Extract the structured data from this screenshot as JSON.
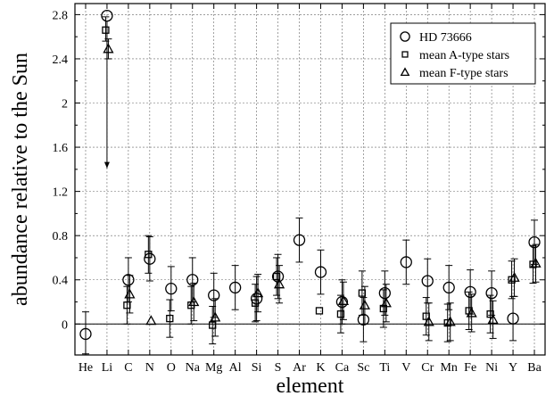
{
  "chart_data": {
    "type": "scatter",
    "xlabel": "element",
    "ylabel": "abundance relative to the Sun",
    "categories": [
      "He",
      "Li",
      "C",
      "N",
      "O",
      "Na",
      "Mg",
      "Al",
      "Si",
      "S",
      "Ar",
      "K",
      "Ca",
      "Sc",
      "Ti",
      "V",
      "Cr",
      "Mn",
      "Fe",
      "Ni",
      "Y",
      "Ba"
    ],
    "ylim": [
      -0.28,
      2.9
    ],
    "yticks": [
      0,
      0.4,
      0.8,
      1.2,
      1.6,
      2,
      2.4,
      2.8
    ],
    "ytick_labels": [
      "0",
      "0.4",
      "0.8",
      "1.2",
      "1.6",
      "2",
      "2.4",
      "2.8"
    ],
    "grid": true,
    "legend_position": "top-right",
    "reference_line": 0,
    "series": [
      {
        "name": "HD 73666",
        "marker": "circle",
        "points": [
          {
            "cat": "He",
            "y": -0.09,
            "lo": -0.27,
            "hi": 0.11
          },
          {
            "cat": "Li",
            "y": 2.79,
            "upper_limit": true,
            "arrow_to": 1.41
          },
          {
            "cat": "C",
            "y": 0.4,
            "lo": 0.2,
            "hi": 0.6
          },
          {
            "cat": "N",
            "y": 0.59,
            "lo": 0.39,
            "hi": 0.79
          },
          {
            "cat": "O",
            "y": 0.32,
            "lo": 0.12,
            "hi": 0.52
          },
          {
            "cat": "Na",
            "y": 0.4,
            "lo": 0.2,
            "hi": 0.6
          },
          {
            "cat": "Mg",
            "y": 0.26,
            "lo": 0.06,
            "hi": 0.46
          },
          {
            "cat": "Al",
            "y": 0.33,
            "lo": 0.13,
            "hi": 0.53
          },
          {
            "cat": "Si",
            "y": 0.23,
            "lo": 0.03,
            "hi": 0.43
          },
          {
            "cat": "S",
            "y": 0.43,
            "lo": 0.23,
            "hi": 0.63
          },
          {
            "cat": "Ar",
            "y": 0.76,
            "lo": 0.56,
            "hi": 0.96
          },
          {
            "cat": "K",
            "y": 0.47,
            "lo": 0.27,
            "hi": 0.67
          },
          {
            "cat": "Ca",
            "y": 0.2,
            "lo": 0.0,
            "hi": 0.4
          },
          {
            "cat": "Sc",
            "y": 0.04,
            "lo": -0.16,
            "hi": 0.24
          },
          {
            "cat": "Ti",
            "y": 0.28,
            "lo": 0.08,
            "hi": 0.48
          },
          {
            "cat": "V",
            "y": 0.56,
            "lo": 0.36,
            "hi": 0.76
          },
          {
            "cat": "Cr",
            "y": 0.39,
            "lo": 0.19,
            "hi": 0.59
          },
          {
            "cat": "Mn",
            "y": 0.33,
            "lo": 0.13,
            "hi": 0.53
          },
          {
            "cat": "Fe",
            "y": 0.29,
            "lo": 0.09,
            "hi": 0.49
          },
          {
            "cat": "Ni",
            "y": 0.28,
            "lo": 0.08,
            "hi": 0.48
          },
          {
            "cat": "Y",
            "y": 0.05,
            "lo": -0.15,
            "hi": 0.25
          },
          {
            "cat": "Ba",
            "y": 0.74,
            "lo": 0.54,
            "hi": 0.94
          }
        ]
      },
      {
        "name": "mean A-type stars",
        "marker": "square",
        "points": [
          {
            "cat": "Li",
            "y": 2.66,
            "lo": 2.56,
            "hi": 2.78
          },
          {
            "cat": "C",
            "y": 0.17,
            "lo": 0.0,
            "hi": 0.34
          },
          {
            "cat": "N",
            "y": 0.63,
            "lo": 0.46,
            "hi": 0.8
          },
          {
            "cat": "O",
            "y": 0.05,
            "lo": -0.12,
            "hi": 0.22
          },
          {
            "cat": "Na",
            "y": 0.17,
            "lo": 0.0,
            "hi": 0.34
          },
          {
            "cat": "Mg",
            "y": -0.01,
            "lo": -0.18,
            "hi": 0.16
          },
          {
            "cat": "Si",
            "y": 0.19,
            "lo": 0.02,
            "hi": 0.36
          },
          {
            "cat": "S",
            "y": 0.43,
            "lo": 0.26,
            "hi": 0.6
          },
          {
            "cat": "K",
            "y": 0.12
          },
          {
            "cat": "Ca",
            "y": 0.09,
            "lo": -0.08,
            "hi": 0.26
          },
          {
            "cat": "Sc",
            "y": 0.28,
            "lo": 0.08,
            "hi": 0.48
          },
          {
            "cat": "Ti",
            "y": 0.14,
            "lo": -0.03,
            "hi": 0.31
          },
          {
            "cat": "Cr",
            "y": 0.07,
            "lo": -0.1,
            "hi": 0.24
          },
          {
            "cat": "Mn",
            "y": 0.01,
            "lo": -0.16,
            "hi": 0.18
          },
          {
            "cat": "Fe",
            "y": 0.12,
            "lo": -0.05,
            "hi": 0.29
          },
          {
            "cat": "Ni",
            "y": 0.09,
            "lo": -0.08,
            "hi": 0.26
          },
          {
            "cat": "Y",
            "y": 0.4,
            "lo": 0.23,
            "hi": 0.57
          },
          {
            "cat": "Ba",
            "y": 0.54,
            "lo": 0.37,
            "hi": 0.71
          }
        ]
      },
      {
        "name": "mean F-type stars",
        "marker": "triangle",
        "points": [
          {
            "cat": "Li",
            "y": 2.49,
            "lo": 2.4,
            "hi": 2.58
          },
          {
            "cat": "C",
            "y": 0.27,
            "lo": 0.1,
            "hi": 0.44
          },
          {
            "cat": "N",
            "y": 0.03
          },
          {
            "cat": "Na",
            "y": 0.2,
            "lo": 0.03,
            "hi": 0.37
          },
          {
            "cat": "Mg",
            "y": 0.06,
            "lo": -0.11,
            "hi": 0.23
          },
          {
            "cat": "Si",
            "y": 0.28,
            "lo": 0.11,
            "hi": 0.45
          },
          {
            "cat": "S",
            "y": 0.36,
            "lo": 0.19,
            "hi": 0.53
          },
          {
            "cat": "Ca",
            "y": 0.21,
            "lo": 0.04,
            "hi": 0.38
          },
          {
            "cat": "Sc",
            "y": 0.17,
            "lo": 0.0,
            "hi": 0.34
          },
          {
            "cat": "Ti",
            "y": 0.19,
            "lo": 0.02,
            "hi": 0.36
          },
          {
            "cat": "Cr",
            "y": 0.02,
            "lo": -0.15,
            "hi": 0.19
          },
          {
            "cat": "Mn",
            "y": 0.02,
            "lo": -0.15,
            "hi": 0.19
          },
          {
            "cat": "Fe",
            "y": 0.1,
            "lo": -0.07,
            "hi": 0.27
          },
          {
            "cat": "Ni",
            "y": 0.04,
            "lo": -0.13,
            "hi": 0.21
          },
          {
            "cat": "Y",
            "y": 0.42,
            "lo": 0.25,
            "hi": 0.59
          },
          {
            "cat": "Ba",
            "y": 0.55,
            "lo": 0.38,
            "hi": 0.72
          }
        ]
      }
    ]
  }
}
